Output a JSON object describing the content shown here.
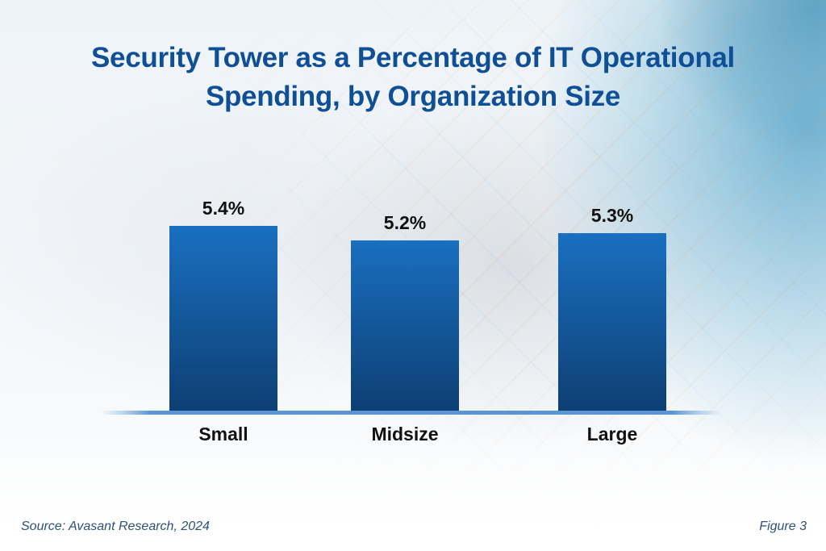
{
  "chart_data": {
    "type": "bar",
    "title": "Security Tower as a Percentage of IT Operational Spending, by Organization Size",
    "title_lines": [
      "Security Tower as a Percentage of IT Operational",
      "Spending, by Organization Size"
    ],
    "categories": [
      "Small",
      "Midsize",
      "Large"
    ],
    "values": [
      5.4,
      5.2,
      5.3
    ],
    "value_labels": [
      "5.4%",
      "5.2%",
      "5.3%"
    ],
    "unit": "%",
    "xlabel": "",
    "ylabel": "",
    "ylim": [
      2.85,
      5.4
    ],
    "grid": false,
    "legend": "none",
    "colors": {
      "bar_top": "#1a6fc0",
      "bar_bottom": "#0d3f73",
      "title": "#0f4f96",
      "baseline": "#4a86c8"
    }
  },
  "footer": {
    "source": "Source: Avasant Research, 2024",
    "figure": "Figure 3"
  }
}
